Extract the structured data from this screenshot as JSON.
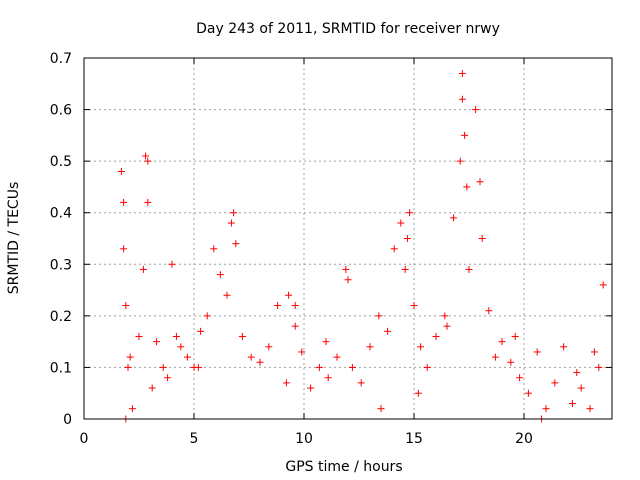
{
  "chart_data": {
    "type": "scatter",
    "title": "Day 243 of 2011, SRMTID for receiver nrwy",
    "xlabel": "GPS time / hours",
    "ylabel": "SRMTID / TECUs",
    "xlim": [
      0,
      24
    ],
    "ylim": [
      0,
      0.7
    ],
    "xticks": [
      0,
      5,
      10,
      15,
      20
    ],
    "yticks": [
      0,
      0.1,
      0.2,
      0.3,
      0.4,
      0.5,
      0.6,
      0.7
    ],
    "grid": true,
    "marker": "+",
    "series": [
      {
        "name": "SRMTID",
        "color": "#ff0000",
        "x": [
          1.7,
          1.8,
          1.9,
          2.0,
          2.2,
          2.5,
          2.7,
          2.8,
          2.9,
          3.1,
          3.3,
          3.6,
          4.0,
          4.2,
          4.4,
          4.7,
          5.0,
          5.3,
          5.6,
          5.9,
          6.2,
          6.5,
          6.8,
          6.9,
          7.2,
          7.6,
          8.0,
          8.4,
          8.8,
          9.2,
          9.6,
          9.9,
          10.3,
          10.7,
          11.1,
          11.5,
          11.9,
          12.2,
          12.6,
          13.0,
          13.4,
          13.8,
          14.1,
          14.4,
          14.6,
          14.8,
          15.0,
          15.3,
          15.6,
          16.0,
          16.4,
          16.8,
          17.1,
          17.2,
          17.3,
          17.5,
          17.8,
          18.1,
          18.4,
          18.7,
          19.0,
          19.4,
          19.8,
          20.2,
          20.6,
          21.0,
          21.4,
          21.8,
          22.2,
          22.6,
          23.0,
          23.4,
          23.6,
          1.8,
          2.9,
          6.7,
          17.2,
          17.4,
          18.0,
          14.7,
          12.0,
          5.2,
          3.8,
          1.9,
          2.1,
          9.3,
          9.6,
          15.2,
          13.5,
          11.0,
          16.5,
          19.6,
          22.4,
          23.2,
          20.8
        ],
        "y": [
          0.48,
          0.33,
          0.22,
          0.1,
          0.02,
          0.16,
          0.29,
          0.51,
          0.42,
          0.06,
          0.15,
          0.1,
          0.3,
          0.16,
          0.14,
          0.12,
          0.1,
          0.17,
          0.2,
          0.33,
          0.28,
          0.24,
          0.4,
          0.34,
          0.16,
          0.12,
          0.11,
          0.14,
          0.22,
          0.07,
          0.18,
          0.13,
          0.06,
          0.1,
          0.08,
          0.12,
          0.29,
          0.1,
          0.07,
          0.14,
          0.2,
          0.17,
          0.33,
          0.38,
          0.29,
          0.4,
          0.22,
          0.14,
          0.1,
          0.16,
          0.2,
          0.39,
          0.5,
          0.67,
          0.55,
          0.29,
          0.6,
          0.35,
          0.21,
          0.12,
          0.15,
          0.11,
          0.08,
          0.05,
          0.13,
          0.02,
          0.07,
          0.14,
          0.03,
          0.06,
          0.02,
          0.1,
          0.26,
          0.42,
          0.5,
          0.38,
          0.62,
          0.45,
          0.46,
          0.35,
          0.27,
          0.1,
          0.08,
          0.0,
          0.12,
          0.24,
          0.22,
          0.05,
          0.02,
          0.15,
          0.18,
          0.16,
          0.09,
          0.13,
          0.0
        ]
      }
    ]
  }
}
